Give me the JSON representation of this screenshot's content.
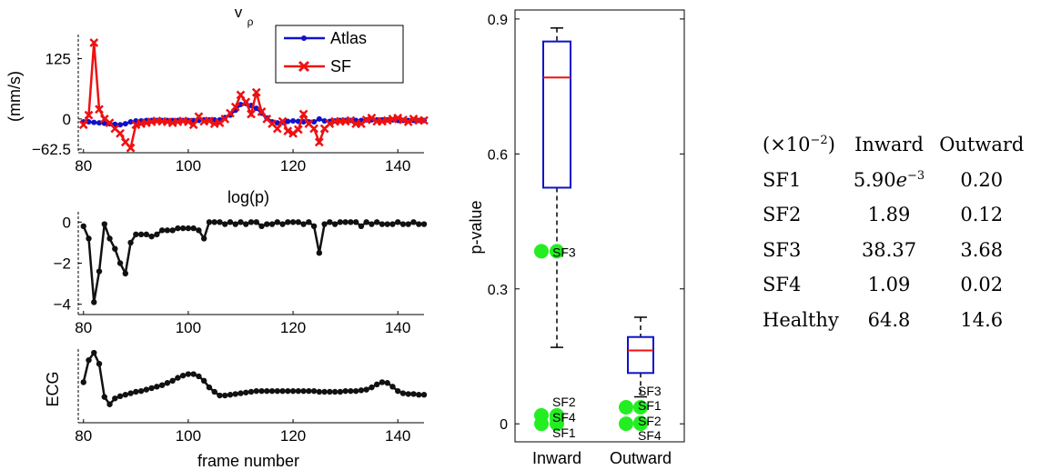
{
  "colors": {
    "atlas": "#1010cc",
    "sf": "#ee1111",
    "black": "#111111",
    "box": "#1010cc",
    "median": "#ee1111",
    "outlier": "#22ee22"
  },
  "chart_data": [
    {
      "type": "line",
      "title": "v",
      "title_sub": "ρ",
      "ylabel": "(mm/s)",
      "xlabel": "log(p)",
      "xlim": [
        79,
        145
      ],
      "ylim": [
        -70,
        175
      ],
      "xticks": [
        80,
        100,
        120,
        140
      ],
      "yticks": [
        -62.5,
        0,
        125
      ],
      "ytick_labels": [
        "−62.5",
        "0",
        "125"
      ],
      "legend": {
        "placement": "top-right",
        "entries": [
          "Atlas",
          "SF"
        ]
      },
      "x": [
        80,
        81,
        82,
        83,
        84,
        85,
        86,
        87,
        88,
        89,
        90,
        91,
        92,
        93,
        94,
        95,
        96,
        97,
        98,
        99,
        100,
        101,
        102,
        103,
        104,
        105,
        106,
        107,
        108,
        109,
        110,
        111,
        112,
        113,
        114,
        115,
        116,
        117,
        118,
        119,
        120,
        121,
        122,
        123,
        124,
        125,
        126,
        127,
        128,
        129,
        130,
        131,
        132,
        133,
        134,
        135,
        136,
        137,
        138,
        139,
        140,
        141,
        142,
        143,
        144,
        145
      ],
      "series": [
        {
          "name": "Atlas",
          "marker": "dot",
          "values": [
            -6,
            -6,
            -7,
            -8,
            -9,
            -10,
            -11,
            -12,
            -10,
            -6,
            -4,
            -4,
            -3,
            -3,
            -3,
            -3,
            -3,
            -3,
            -3,
            -3,
            -3,
            -3,
            -3,
            -2,
            -2,
            -2,
            -2,
            3,
            8,
            18,
            30,
            32,
            28,
            22,
            12,
            2,
            -6,
            -8,
            -7,
            -5,
            -4,
            -5,
            -6,
            -6,
            -6,
            0,
            -4,
            -5,
            -4,
            -3,
            -3,
            -3,
            -3,
            -3,
            -2,
            -2,
            -2,
            -2,
            -2,
            -2,
            -3,
            -3,
            -3,
            -3,
            -3,
            -3
          ]
        },
        {
          "name": "SF",
          "marker": "x",
          "values": [
            -12,
            8,
            158,
            20,
            0,
            -8,
            -20,
            -30,
            -48,
            -60,
            -12,
            -10,
            -8,
            -6,
            -4,
            -5,
            -6,
            -8,
            -6,
            -4,
            -6,
            -12,
            5,
            -5,
            -4,
            -10,
            -8,
            0,
            12,
            25,
            50,
            35,
            10,
            55,
            15,
            0,
            -10,
            -20,
            -5,
            -25,
            -30,
            -22,
            10,
            -10,
            -20,
            -48,
            -20,
            -10,
            -5,
            -5,
            -5,
            -3,
            -10,
            -10,
            -2,
            2,
            -5,
            -5,
            -3,
            0,
            2,
            -2,
            -6,
            0,
            -3,
            -3
          ]
        }
      ]
    },
    {
      "type": "line",
      "xlabel": "",
      "ylabel": "",
      "xlim": [
        79,
        145
      ],
      "ylim": [
        -4.5,
        0.5
      ],
      "xticks": [
        80,
        100,
        120,
        140
      ],
      "yticks": [
        -4,
        -2,
        0
      ],
      "ytick_labels": [
        "−4",
        "−2",
        "0"
      ],
      "x": [
        80,
        81,
        82,
        83,
        84,
        85,
        86,
        87,
        88,
        89,
        90,
        91,
        92,
        93,
        94,
        95,
        96,
        97,
        98,
        99,
        100,
        101,
        102,
        103,
        104,
        105,
        106,
        107,
        108,
        109,
        110,
        111,
        112,
        113,
        114,
        115,
        116,
        117,
        118,
        119,
        120,
        121,
        122,
        123,
        124,
        125,
        126,
        127,
        128,
        129,
        130,
        131,
        132,
        133,
        134,
        135,
        136,
        137,
        138,
        139,
        140,
        141,
        142,
        143,
        144,
        145
      ],
      "series": [
        {
          "name": "",
          "values": [
            -0.2,
            -0.8,
            -3.9,
            -2.4,
            -0.1,
            -0.8,
            -1.3,
            -2.0,
            -2.5,
            -1.0,
            -0.6,
            -0.6,
            -0.6,
            -0.7,
            -0.6,
            -0.4,
            -0.4,
            -0.4,
            -0.3,
            -0.3,
            -0.3,
            -0.3,
            -0.4,
            -0.8,
            0.0,
            0.0,
            0.0,
            -0.1,
            0.0,
            -0.1,
            0.0,
            -0.1,
            0.0,
            0.0,
            -0.2,
            -0.1,
            -0.1,
            0.0,
            -0.1,
            0.0,
            0.0,
            0.0,
            -0.1,
            0.0,
            -0.2,
            -1.5,
            -0.1,
            0.0,
            -0.1,
            0.0,
            0.0,
            0.0,
            0.0,
            -0.2,
            0.0,
            -0.1,
            0.0,
            -0.1,
            -0.1,
            -0.1,
            0.0,
            -0.1,
            -0.1,
            0.0,
            -0.1,
            -0.1
          ]
        }
      ]
    },
    {
      "type": "line",
      "ylabel": "ECG",
      "xlabel": "frame number",
      "xlim": [
        79,
        145
      ],
      "ylim": [
        0,
        1
      ],
      "xticks": [
        80,
        100,
        120,
        140
      ],
      "x": [
        80,
        81,
        82,
        83,
        84,
        85,
        86,
        87,
        88,
        89,
        90,
        91,
        92,
        93,
        94,
        95,
        96,
        97,
        98,
        99,
        100,
        101,
        102,
        103,
        104,
        105,
        106,
        107,
        108,
        109,
        110,
        111,
        112,
        113,
        114,
        115,
        116,
        117,
        118,
        119,
        120,
        121,
        122,
        123,
        124,
        125,
        126,
        127,
        128,
        129,
        130,
        131,
        132,
        133,
        134,
        135,
        136,
        137,
        138,
        139,
        140,
        141,
        142,
        143,
        144,
        145
      ],
      "series": [
        {
          "name": "",
          "values": [
            0.55,
            0.85,
            0.95,
            0.8,
            0.35,
            0.25,
            0.33,
            0.36,
            0.38,
            0.4,
            0.42,
            0.43,
            0.45,
            0.47,
            0.49,
            0.51,
            0.54,
            0.57,
            0.61,
            0.64,
            0.66,
            0.66,
            0.63,
            0.57,
            0.48,
            0.42,
            0.37,
            0.37,
            0.38,
            0.39,
            0.4,
            0.41,
            0.42,
            0.43,
            0.43,
            0.43,
            0.43,
            0.43,
            0.43,
            0.43,
            0.43,
            0.43,
            0.43,
            0.43,
            0.43,
            0.42,
            0.42,
            0.42,
            0.42,
            0.42,
            0.43,
            0.43,
            0.43,
            0.44,
            0.45,
            0.48,
            0.52,
            0.55,
            0.54,
            0.49,
            0.43,
            0.4,
            0.39,
            0.39,
            0.38,
            0.38
          ]
        }
      ]
    },
    {
      "type": "box",
      "ylabel": "p-value",
      "xlabel": "",
      "ylim": [
        -0.04,
        0.92
      ],
      "yticks": [
        0,
        0.3,
        0.6,
        0.9
      ],
      "ytick_labels": [
        "0",
        "0.3",
        "0.6",
        "0.9"
      ],
      "categories": [
        "Inward",
        "Outward"
      ],
      "boxes": [
        {
          "category": "Inward",
          "whisker_low": 0.17,
          "q1": 0.525,
          "median": 0.77,
          "q3": 0.85,
          "whisker_high": 0.88
        },
        {
          "category": "Outward",
          "whisker_low": 0.06,
          "q1": 0.113,
          "median": 0.163,
          "q3": 0.193,
          "whisker_high": 0.237
        }
      ],
      "outliers": [
        {
          "category": "Inward",
          "label": "SF3",
          "value": 0.3837
        },
        {
          "category": "Inward",
          "label": "SF2",
          "value": 0.0189
        },
        {
          "category": "Inward",
          "label": "SF4",
          "value": 0.0109
        },
        {
          "category": "Inward",
          "label": "SF1",
          "value": 0.0001
        },
        {
          "category": "Outward",
          "label": "SF3",
          "value": 0.0368
        },
        {
          "category": "Outward",
          "label": "SF1",
          "value": 0.002
        },
        {
          "category": "Outward",
          "label": "SF2",
          "value": 0.0012
        },
        {
          "category": "Outward",
          "label": "SF4",
          "value": 0.0002
        }
      ],
      "outlier_labels": {
        "Inward": [
          {
            "text": "SF3",
            "group": "upper"
          },
          {
            "text": "SF2",
            "group": "lower"
          },
          {
            "text": "SF4",
            "group": "lower"
          },
          {
            "text": "SF1",
            "group": "lower"
          }
        ],
        "Outward": [
          {
            "text": "SF3",
            "group": "lower"
          },
          {
            "text": "SF1",
            "group": "lower"
          },
          {
            "text": "SF2",
            "group": "lower"
          },
          {
            "text": "SF4",
            "group": "lower"
          }
        ]
      }
    },
    {
      "type": "table",
      "header": [
        "(×10",
        "−2",
        ")",
        "Inward",
        "Outward"
      ],
      "rows": [
        {
          "label": "SF1",
          "inward": "5.90",
          "inward_sup": "−3",
          "inward_prefix_e": "e",
          "outward": "0.20"
        },
        {
          "label": "SF2",
          "inward": "1.89",
          "outward": "0.12"
        },
        {
          "label": "SF3",
          "inward": "38.37",
          "outward": "3.68"
        },
        {
          "label": "SF4",
          "inward": "1.09",
          "outward": "0.02"
        },
        {
          "label": "Healthy",
          "inward": "64.8",
          "outward": "14.6"
        }
      ]
    }
  ]
}
